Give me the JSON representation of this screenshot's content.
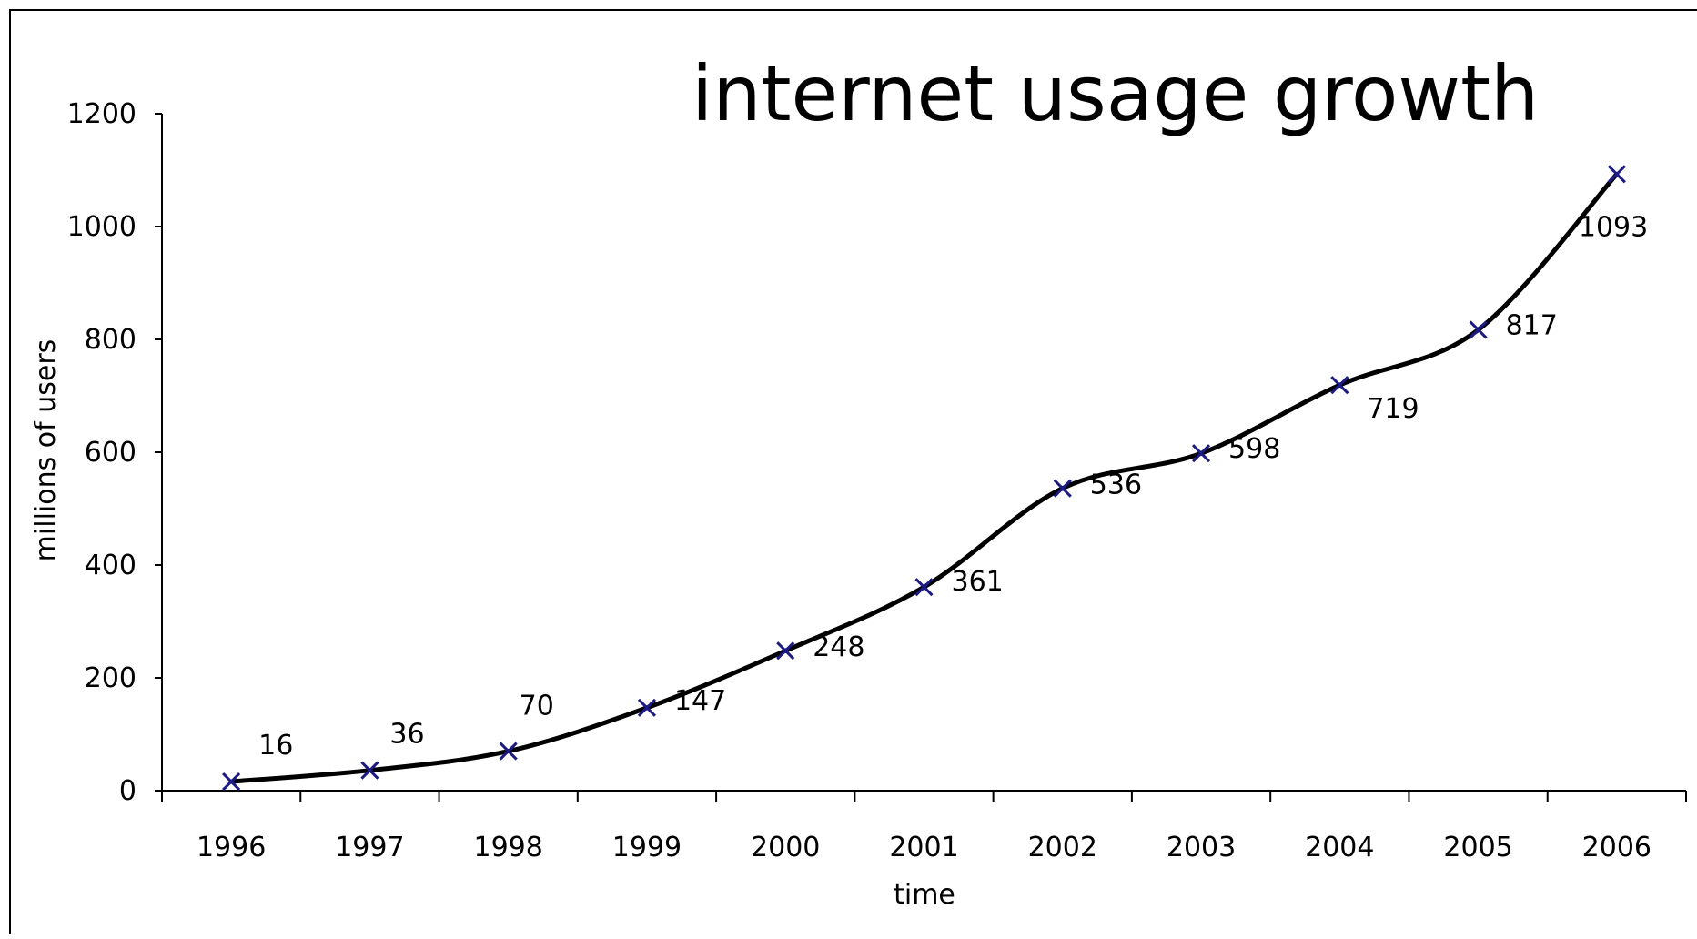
{
  "chart_data": {
    "type": "line",
    "title": "internet usage growth",
    "xlabel": "time",
    "ylabel": "millions of users",
    "categories": [
      "1996",
      "1997",
      "1998",
      "1999",
      "2000",
      "2001",
      "2002",
      "2003",
      "2004",
      "2005",
      "2006"
    ],
    "series": [
      {
        "values": [
          16,
          36,
          70,
          147,
          248,
          361,
          536,
          598,
          719,
          817,
          1093
        ]
      }
    ],
    "data_labels": [
      "16",
      "36",
      "70",
      "147",
      "248",
      "361",
      "536",
      "598",
      "719",
      "817",
      "1093"
    ],
    "yticks": [
      "0",
      "200",
      "400",
      "600",
      "800",
      "1000",
      "1200"
    ],
    "ylim": [
      0,
      1200
    ],
    "grid": false,
    "legend": "none",
    "colors": {
      "line": "#000000",
      "marker": "#1a1a8c",
      "frame": "#000000"
    }
  }
}
